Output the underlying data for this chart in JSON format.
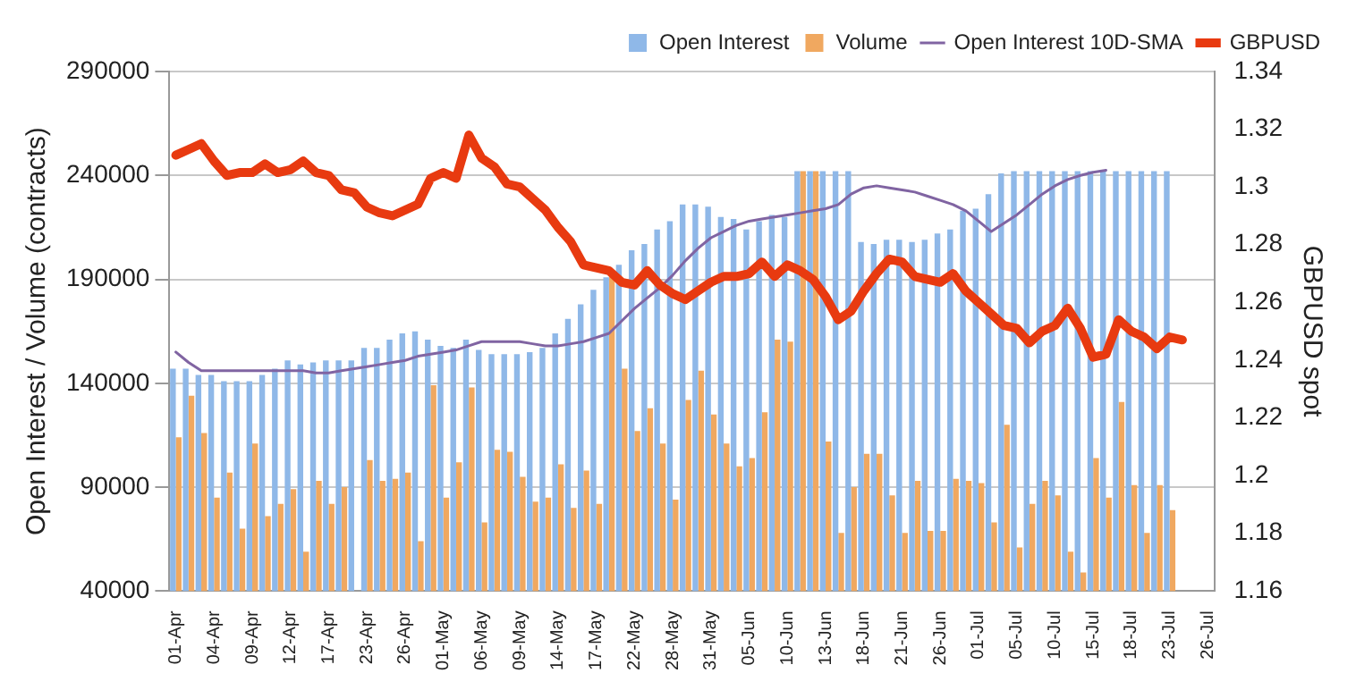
{
  "chart_data": {
    "type": "bar",
    "ylabel": "Open Interest / Volume (contracts)",
    "y2label": "GBPUSD spot",
    "categories": [
      "01-Apr",
      null,
      null,
      "04-Apr",
      null,
      null,
      "09-Apr",
      null,
      null,
      "12-Apr",
      null,
      null,
      "17-Apr",
      null,
      null,
      "23-Apr",
      null,
      null,
      "26-Apr",
      null,
      null,
      "01-May",
      null,
      null,
      "06-May",
      null,
      null,
      "09-May",
      null,
      null,
      "14-May",
      null,
      null,
      "17-May",
      null,
      null,
      "22-May",
      null,
      null,
      "28-May",
      null,
      null,
      "31-May",
      null,
      null,
      "05-Jun",
      null,
      null,
      "10-Jun",
      null,
      null,
      "13-Jun",
      null,
      null,
      "18-Jun",
      null,
      null,
      "21-Jun",
      null,
      null,
      "26-Jun",
      null,
      null,
      "01-Jul",
      null,
      null,
      "05-Jul",
      null,
      null,
      "10-Jul",
      null,
      null,
      "15-Jul",
      null,
      null,
      "18-Jul",
      null,
      null,
      "23-Jul",
      null,
      null,
      "26-Jul"
    ],
    "series": [
      {
        "name": "Open Interest",
        "type": "bar",
        "color": "#8fb8e8",
        "values": [
          147000,
          147000,
          144000,
          144000,
          141000,
          141000,
          141000,
          144000,
          147000,
          151000,
          149000,
          150000,
          151000,
          151000,
          151000,
          157000,
          157000,
          161000,
          164000,
          165000,
          161000,
          158000,
          157000,
          161000,
          156000,
          154000,
          154000,
          154000,
          155000,
          157000,
          164000,
          171000,
          178000,
          185000,
          191000,
          197000,
          204000,
          207000,
          214000,
          218000,
          226000,
          226000,
          225000,
          220000,
          219000,
          214000,
          218000,
          221000,
          220000,
          242000,
          242000,
          242000,
          242000,
          242000,
          208000,
          207000,
          209000,
          209000,
          208000,
          209000,
          212000,
          214000,
          223000,
          224000,
          231000,
          241000,
          242000,
          242000,
          242000,
          242000,
          242000,
          242000,
          242000,
          242000,
          242000,
          242000,
          242000,
          242000,
          242000,
          null,
          null,
          null
        ]
      },
      {
        "name": "Volume",
        "type": "bar",
        "color": "#f0a860",
        "values": [
          114000,
          134000,
          116000,
          85000,
          97000,
          70000,
          111000,
          76000,
          82000,
          89000,
          59000,
          93000,
          82000,
          90000,
          null,
          103000,
          93000,
          94000,
          97000,
          64000,
          139000,
          85000,
          102000,
          138000,
          73000,
          108000,
          107000,
          95000,
          83000,
          85000,
          101000,
          80000,
          98000,
          82000,
          192000,
          147000,
          117000,
          128000,
          111000,
          84000,
          132000,
          146000,
          125000,
          111000,
          100000,
          104000,
          126000,
          161000,
          160000,
          242000,
          242000,
          112000,
          68000,
          90000,
          106000,
          106000,
          86000,
          68000,
          93000,
          69000,
          69000,
          94000,
          93000,
          92000,
          73000,
          120000,
          61000,
          82000,
          93000,
          86000,
          59000,
          49000,
          104000,
          85000,
          131000,
          91000,
          68000,
          91000,
          79000,
          null,
          null,
          null
        ]
      },
      {
        "name": "Open Interest 10D-SMA",
        "type": "line",
        "color": "#8064a2",
        "values": [
          155000,
          150000,
          146000,
          146000,
          146000,
          146000,
          146000,
          146000,
          146000,
          146000,
          146000,
          145000,
          145000,
          146000,
          147000,
          148000,
          149000,
          150000,
          151000,
          153000,
          154000,
          155000,
          156000,
          158000,
          160000,
          160000,
          160000,
          160000,
          159000,
          158000,
          158000,
          159000,
          160000,
          162000,
          164000,
          170000,
          176000,
          181000,
          186000,
          192000,
          199000,
          205000,
          210000,
          213000,
          216000,
          218000,
          219000,
          220000,
          221000,
          222000,
          223000,
          224000,
          226000,
          231000,
          234000,
          235000,
          234000,
          233000,
          232000,
          230000,
          228000,
          226000,
          223000,
          218000,
          213000,
          217000,
          221000,
          226000,
          231000,
          235000,
          238000,
          240000,
          241500,
          242500,
          null,
          null,
          null,
          null,
          null,
          null,
          null,
          null
        ]
      },
      {
        "name": "GBPUSD",
        "type": "line",
        "axis": "y2",
        "color": "#e83a10",
        "values": [
          1.311,
          1.313,
          1.315,
          1.309,
          1.304,
          1.305,
          1.305,
          1.308,
          1.305,
          1.306,
          1.309,
          1.305,
          1.304,
          1.299,
          1.298,
          1.293,
          1.291,
          1.29,
          1.292,
          1.294,
          1.303,
          1.305,
          1.303,
          1.318,
          1.31,
          1.307,
          1.301,
          1.3,
          1.296,
          1.292,
          1.286,
          1.281,
          1.273,
          1.272,
          1.271,
          1.267,
          1.266,
          1.271,
          1.266,
          1.263,
          1.261,
          1.264,
          1.267,
          1.269,
          1.269,
          1.27,
          1.274,
          1.269,
          1.273,
          1.271,
          1.268,
          1.262,
          1.254,
          1.257,
          1.264,
          1.27,
          1.275,
          1.274,
          1.269,
          1.268,
          1.267,
          1.27,
          1.264,
          1.26,
          1.256,
          1.252,
          1.251,
          1.246,
          1.25,
          1.252,
          1.258,
          1.251,
          1.241,
          1.242,
          1.254,
          1.25,
          1.248,
          1.244,
          1.248,
          1.247,
          null,
          null
        ]
      }
    ],
    "ylim": [
      40000,
      290000
    ],
    "yticks": [
      40000,
      90000,
      140000,
      190000,
      240000,
      290000
    ],
    "y2lim": [
      1.16,
      1.34
    ],
    "y2ticks": [
      1.16,
      1.18,
      1.2,
      1.22,
      1.24,
      1.26,
      1.28,
      1.3,
      1.32,
      1.34
    ],
    "grid": "y",
    "legend": "top right"
  }
}
